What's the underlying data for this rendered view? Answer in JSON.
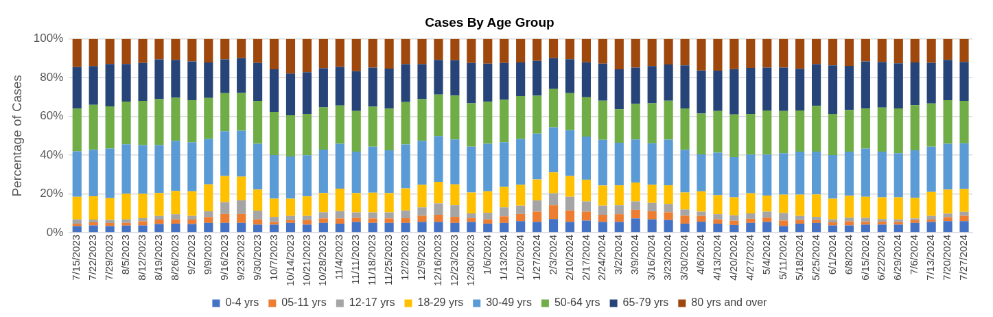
{
  "chart_data": {
    "type": "bar",
    "stacked": true,
    "title": "Cases By Age Group",
    "ylabel": "Percentage of Cases",
    "categories": [
      "7/15/2023",
      "7/22/2023",
      "7/29/2023",
      "8/5/2023",
      "8/12/2023",
      "8/19/2023",
      "8/26/2023",
      "9/2/2023",
      "9/9/2023",
      "9/16/2023",
      "9/23/2023",
      "9/30/2023",
      "10/7/2023",
      "10/14/2023",
      "10/21/2023",
      "10/28/2023",
      "11/4/2023",
      "11/11/2023",
      "11/18/2023",
      "11/25/2023",
      "12/2/2023",
      "12/9/2023",
      "12/16/2023",
      "12/23/2023",
      "12/30/2023",
      "1/6/2024",
      "1/13/2024",
      "1/20/2024",
      "1/27/2024",
      "2/3/2024",
      "2/10/2024",
      "2/17/2024",
      "2/24/2024",
      "3/2/2024",
      "3/9/2024",
      "3/16/2024",
      "3/23/2024",
      "3/30/2024",
      "4/6/2024",
      "4/13/2024",
      "4/20/2024",
      "4/27/2024",
      "5/4/2024",
      "5/11/2024",
      "5/18/2024",
      "5/25/2024",
      "6/1/2024",
      "6/8/2024",
      "6/15/2024",
      "6/22/2024",
      "6/29/2024",
      "7/6/2024",
      "7/13/2024",
      "7/20/2024",
      "7/27/2024"
    ],
    "series": [
      {
        "name": "0-4 yrs",
        "color": "#4472c4",
        "values": [
          3.3,
          3.7,
          3.3,
          3.6,
          3.7,
          4.4,
          4.6,
          4.4,
          5,
          5,
          5,
          4.1,
          4.1,
          5,
          4.1,
          5,
          4.6,
          5.5,
          5,
          5,
          5,
          5.5,
          5.5,
          5,
          5.5,
          4.6,
          5,
          5.9,
          5.5,
          7,
          5.5,
          6.2,
          5.5,
          5.5,
          7.3,
          6.8,
          6.5,
          4.6,
          5.6,
          4.6,
          3.9,
          5,
          5.5,
          3.4,
          4.6,
          5,
          3.7,
          3.7,
          4.1,
          4.1,
          4.1,
          5,
          5.5,
          5.9,
          5.9
        ]
      },
      {
        "name": "05-11 yrs",
        "color": "#ed7d31",
        "values": [
          1.3,
          1.6,
          1.6,
          1.4,
          2.1,
          2.3,
          2.2,
          2.3,
          3,
          4.6,
          4.6,
          2.7,
          1.4,
          1.4,
          2.3,
          2.3,
          2.7,
          2.1,
          2.3,
          2.3,
          2.4,
          3.2,
          3.7,
          3.1,
          1.9,
          2.2,
          3.4,
          3.7,
          5.3,
          7.1,
          5.9,
          4.6,
          3.7,
          4,
          4.4,
          4.2,
          4,
          4.1,
          3,
          2.2,
          2.2,
          2.1,
          2.2,
          2.8,
          1.8,
          1.4,
          1.6,
          2.1,
          1.4,
          1.5,
          1.4,
          1.4,
          1.2,
          2,
          2.8
        ]
      },
      {
        "name": "12-17 yrs",
        "color": "#a5a5a5",
        "values": [
          2.2,
          1.4,
          1.6,
          1.8,
          1.6,
          1.9,
          2.7,
          1.9,
          3,
          6.1,
          7.1,
          4.5,
          2.6,
          2.2,
          2.2,
          3.2,
          3.8,
          2.8,
          3.1,
          3.1,
          4,
          4.3,
          5.9,
          6,
          2.5,
          3.4,
          4.6,
          4.3,
          5.8,
          6.2,
          7.1,
          5.3,
          4.7,
          4.6,
          4.4,
          4.3,
          4.3,
          3.2,
          2.2,
          2.7,
          2.8,
          2.8,
          3.1,
          3.9,
          2.2,
          1.7,
          1.5,
          1.9,
          2.1,
          1.4,
          1.3,
          0.9,
          1.9,
          1.9,
          2
        ]
      },
      {
        "name": "18-29 yrs",
        "color": "#ffc000",
        "values": [
          11.7,
          12.1,
          11.3,
          13.2,
          12.6,
          11.8,
          12,
          12.7,
          13.9,
          13.5,
          12.2,
          10.9,
          9.4,
          8.9,
          10.1,
          9.9,
          11.6,
          10,
          10.2,
          10,
          11.4,
          11.7,
          11.1,
          10.8,
          10.8,
          11.1,
          10.6,
          10.8,
          10.8,
          10.8,
          10.7,
          11.2,
          10.4,
          10.3,
          9.7,
          9.4,
          9.6,
          8.8,
          10.5,
          9.8,
          9.3,
          10.4,
          8.3,
          9.5,
          11,
          11.6,
          10.7,
          11.3,
          10.9,
          11.2,
          11.4,
          10.6,
          12.4,
          12.4,
          11.8
        ]
      },
      {
        "name": "30-49 yrs",
        "color": "#5b9bd5",
        "values": [
          23.5,
          24,
          25.6,
          25.6,
          25.2,
          24.8,
          25.9,
          25.4,
          23.5,
          23.1,
          23.7,
          23.7,
          22.5,
          21.8,
          21.2,
          22.5,
          23.2,
          21.4,
          23.8,
          22.1,
          22.7,
          22.7,
          23.7,
          23.2,
          23.7,
          24.6,
          23.1,
          23.7,
          23.7,
          23.3,
          23.7,
          22.3,
          23.6,
          22,
          22.3,
          21.4,
          23.6,
          22.1,
          19.1,
          22,
          20.8,
          20,
          21.2,
          21.4,
          22.2,
          22.1,
          22.5,
          22.8,
          24.9,
          23.6,
          22.8,
          24.6,
          23.4,
          23.7,
          23.6
        ]
      },
      {
        "name": "50-64 yrs",
        "color": "#70ad47",
        "values": [
          22,
          23.2,
          21.8,
          22.1,
          22.8,
          23.7,
          22.2,
          21.7,
          21.1,
          19.7,
          19.5,
          22.1,
          22.4,
          21.3,
          21.4,
          21.8,
          19.7,
          21,
          20.6,
          21.5,
          21.9,
          21.5,
          21.4,
          22.7,
          22.4,
          21.7,
          21.9,
          22.1,
          19.6,
          19.7,
          19.1,
          20.3,
          20.2,
          17.3,
          18.3,
          20.7,
          20.1,
          21.3,
          21.1,
          21.5,
          22,
          21,
          22.8,
          21.8,
          21.3,
          23.7,
          21.3,
          21.5,
          20.6,
          22.8,
          23.1,
          23.3,
          22.3,
          22.5,
          21.9
        ]
      },
      {
        "name": "65-79 yrs",
        "color": "#264478",
        "values": [
          21.5,
          20,
          21.9,
          19.4,
          19.6,
          20.6,
          19.6,
          20,
          18.4,
          17.5,
          18,
          19.6,
          21.9,
          21.5,
          21.5,
          20.2,
          20,
          20.6,
          20.2,
          20.7,
          19.6,
          18.1,
          17.9,
          18.2,
          20.8,
          19.7,
          19,
          17.4,
          18,
          16,
          17.6,
          18.1,
          19.2,
          20.6,
          18.8,
          19.2,
          18.7,
          22.3,
          22.2,
          20.8,
          23.4,
          23.7,
          22.1,
          22.4,
          21.5,
          21.5,
          25.1,
          22.8,
          24.4,
          23.5,
          23.3,
          22.1,
          21,
          20.8,
          20.1
        ]
      },
      {
        "name": "80 yrs and over",
        "color": "#9e480e",
        "values": [
          14.5,
          14,
          12.9,
          12.9,
          12.4,
          10.5,
          10.8,
          11.6,
          12.1,
          10.5,
          9.9,
          12.4,
          15.7,
          17.9,
          17.2,
          15.1,
          14.4,
          16.6,
          14.8,
          15.3,
          13,
          13,
          10.8,
          11,
          12.4,
          12.7,
          12.4,
          12.1,
          11.3,
          9.9,
          10.4,
          12,
          12.7,
          15.7,
          14.8,
          14,
          13.2,
          13.6,
          16.3,
          16.4,
          15.6,
          15,
          14.8,
          14.8,
          15.4,
          13,
          13.6,
          13.9,
          11.6,
          11.9,
          12.6,
          12.1,
          12.3,
          10.8,
          11.9
        ]
      }
    ],
    "ylim": [
      0,
      100
    ],
    "yticks": [
      {
        "value": 0,
        "label": "0%"
      },
      {
        "value": 20,
        "label": "20%"
      },
      {
        "value": 40,
        "label": "40%"
      },
      {
        "value": 60,
        "label": "60%"
      },
      {
        "value": 80,
        "label": "80%"
      },
      {
        "value": 100,
        "label": "100%"
      }
    ],
    "grid": "y",
    "legend": "bottom"
  }
}
